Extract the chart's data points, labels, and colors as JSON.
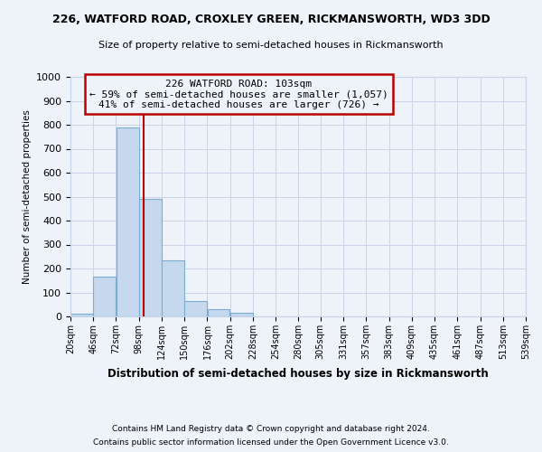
{
  "title1": "226, WATFORD ROAD, CROXLEY GREEN, RICKMANSWORTH, WD3 3DD",
  "title2": "Size of property relative to semi-detached houses in Rickmansworth",
  "xlabel": "Distribution of semi-detached houses by size in Rickmansworth",
  "ylabel": "Number of semi-detached properties",
  "footnote1": "Contains HM Land Registry data © Crown copyright and database right 2024.",
  "footnote2": "Contains public sector information licensed under the Open Government Licence v3.0.",
  "annotation_line1": "226 WATFORD ROAD: 103sqm",
  "annotation_line2": "← 59% of semi-detached houses are smaller (1,057)",
  "annotation_line3": "41% of semi-detached houses are larger (726) →",
  "property_size": 103,
  "bin_edges": [
    20,
    46,
    72,
    98,
    124,
    150,
    176,
    202,
    228,
    254,
    280,
    305,
    331,
    357,
    383,
    409,
    435,
    461,
    487,
    513,
    539
  ],
  "bar_heights": [
    10,
    165,
    790,
    490,
    235,
    65,
    30,
    15,
    0,
    0,
    0,
    0,
    0,
    0,
    0,
    0,
    0,
    0,
    0,
    0
  ],
  "bar_color": "#c5d8ee",
  "bar_edge_color": "#7aadd4",
  "grid_color": "#c8d4e8",
  "vline_color": "#bb0000",
  "annotation_box_color": "#bb0000",
  "background_color": "#eef2f9",
  "ylim": [
    0,
    1000
  ],
  "yticks": [
    0,
    100,
    200,
    300,
    400,
    500,
    600,
    700,
    800,
    900,
    1000
  ],
  "figsize": [
    6.0,
    5.0
  ],
  "dpi": 100
}
